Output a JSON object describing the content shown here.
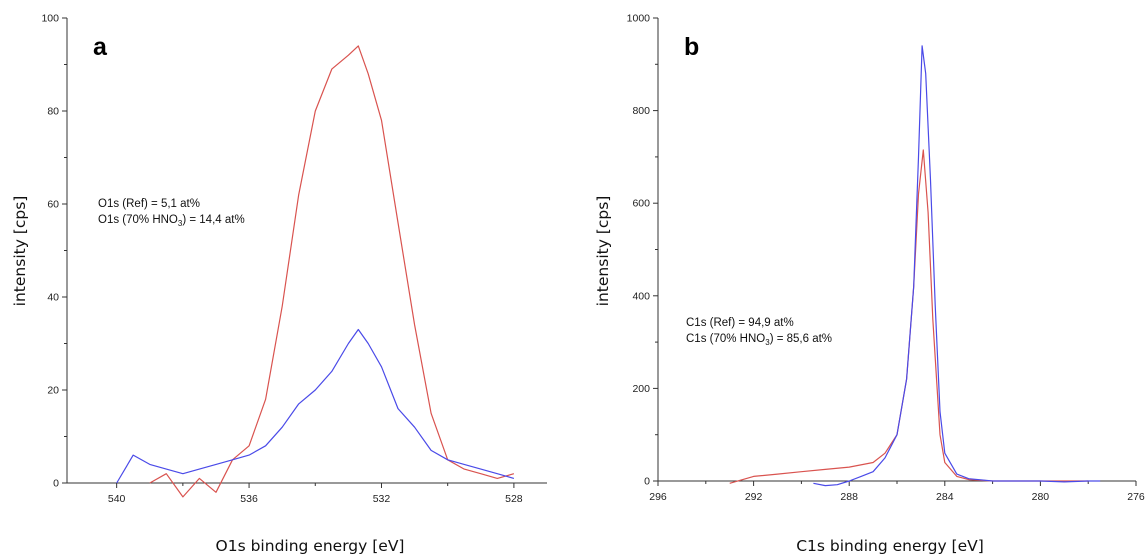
{
  "chart_data": [
    {
      "type": "line",
      "panel_label": "a",
      "xlabel": "O1s binding energy [eV]",
      "ylabel": "intensity [cps]",
      "x_reversed": true,
      "xlim": [
        541.5,
        527
      ],
      "ylim": [
        0,
        100
      ],
      "xticks": [
        540,
        536,
        532,
        528
      ],
      "yticks": [
        0,
        20,
        40,
        60,
        80,
        100
      ],
      "annotations": [
        {
          "pre": "O1s (Ref) = 5,1 at%",
          "sub": "",
          "post": ""
        },
        {
          "pre": "O1s (70% HNO",
          "sub": "3",
          "post": ") = 14,4 at%"
        }
      ],
      "series": [
        {
          "color": "#d9534f",
          "x": [
            539.0,
            538.5,
            538.0,
            537.5,
            537.0,
            536.5,
            536.0,
            535.5,
            535.0,
            534.5,
            534.0,
            533.5,
            533.0,
            532.7,
            532.4,
            532.0,
            531.5,
            531.0,
            530.5,
            530.0,
            529.5,
            529.0,
            528.5,
            528.0
          ],
          "y": [
            0,
            2,
            -3,
            1,
            -2,
            5,
            8,
            18,
            38,
            62,
            80,
            89,
            92,
            94,
            88,
            78,
            56,
            34,
            15,
            5,
            3,
            2,
            1,
            2
          ]
        },
        {
          "color": "#4a4ae8",
          "x": [
            540.0,
            539.5,
            539.0,
            538.5,
            538.0,
            537.5,
            537.0,
            536.5,
            536.0,
            535.5,
            535.0,
            534.5,
            534.0,
            533.5,
            533.0,
            532.7,
            532.4,
            532.0,
            531.5,
            531.0,
            530.5,
            530.0,
            529.5,
            529.0,
            528.5,
            528.0
          ],
          "y": [
            0,
            6,
            4,
            3,
            2,
            3,
            4,
            5,
            6,
            8,
            12,
            17,
            20,
            24,
            30,
            33,
            30,
            25,
            16,
            12,
            7,
            5,
            4,
            3,
            2,
            1
          ]
        }
      ]
    },
    {
      "type": "line",
      "panel_label": "b",
      "xlabel": "C1s binding energy [eV]",
      "ylabel": "intensity [cps]",
      "x_reversed": true,
      "xlim": [
        296,
        276
      ],
      "ylim": [
        0,
        1000
      ],
      "xticks": [
        296,
        292,
        288,
        284,
        280,
        276
      ],
      "yticks": [
        0,
        200,
        400,
        600,
        800,
        1000
      ],
      "annotations": [
        {
          "pre": "C1s (Ref) = 94,9 at%",
          "sub": "",
          "post": ""
        },
        {
          "pre": "C1s (70% HNO",
          "sub": "3",
          "post": ") = 85,6 at%"
        }
      ],
      "series": [
        {
          "color": "#d9534f",
          "x": [
            293.0,
            292.0,
            291.0,
            290.0,
            289.0,
            288.0,
            287.0,
            286.5,
            286.0,
            285.6,
            285.3,
            285.1,
            284.9,
            284.7,
            284.5,
            284.2,
            284.0,
            283.5,
            283.0,
            282.0,
            281.0,
            280.0,
            279.0,
            278.0
          ],
          "y": [
            -5,
            10,
            15,
            20,
            25,
            30,
            40,
            60,
            100,
            220,
            420,
            620,
            715,
            580,
            350,
            100,
            40,
            10,
            3,
            0,
            0,
            0,
            0,
            0
          ]
        },
        {
          "color": "#4a4ae8",
          "x": [
            289.5,
            289.0,
            288.5,
            288.0,
            287.5,
            287.0,
            286.5,
            286.0,
            285.6,
            285.3,
            285.1,
            284.95,
            284.8,
            284.6,
            284.4,
            284.2,
            284.0,
            283.5,
            283.0,
            282.0,
            281.0,
            280.0,
            279.0,
            278.0,
            277.5
          ],
          "y": [
            -5,
            -10,
            -8,
            0,
            10,
            20,
            50,
            100,
            220,
            420,
            700,
            940,
            880,
            650,
            380,
            150,
            60,
            15,
            5,
            0,
            0,
            0,
            -2,
            0,
            0
          ]
        }
      ]
    }
  ]
}
